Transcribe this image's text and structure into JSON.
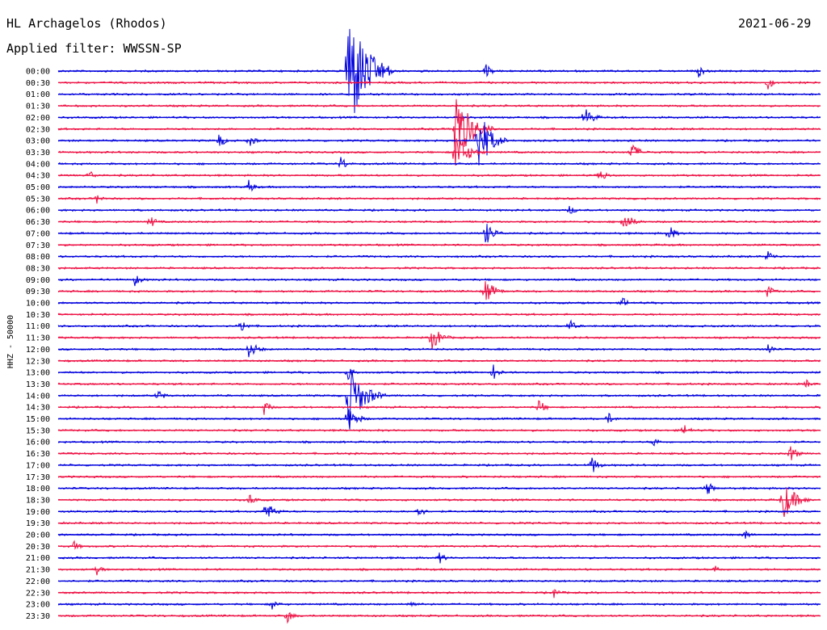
{
  "header": {
    "station": "HL Archagelos (Rhodos)",
    "date": "2021-06-29",
    "filter": "Applied filter: WWSSN-SP"
  },
  "chart_data": {
    "type": "line",
    "kind": "helicorder",
    "ylabel": "HHZ - 50000",
    "row_labels": [
      "00:00",
      "00:30",
      "01:00",
      "01:30",
      "02:00",
      "02:30",
      "03:00",
      "03:30",
      "04:00",
      "04:30",
      "05:00",
      "05:30",
      "06:00",
      "06:30",
      "07:00",
      "07:30",
      "08:00",
      "08:30",
      "09:00",
      "09:30",
      "10:00",
      "10:30",
      "11:00",
      "11:30",
      "12:00",
      "12:30",
      "13:00",
      "13:30",
      "14:00",
      "14:30",
      "15:00",
      "15:30",
      "16:00",
      "16:30",
      "17:00",
      "17:30",
      "18:00",
      "18:30",
      "19:00",
      "19:30",
      "20:00",
      "20:30",
      "21:00",
      "21:30",
      "22:00",
      "22:30",
      "23:00",
      "23:30"
    ],
    "colors": [
      "#0000dd",
      "#ee1144"
    ],
    "events": [
      {
        "row": 0,
        "pos": 0.38,
        "amp": 90,
        "dur": 0.06
      },
      {
        "row": 0,
        "pos": 0.56,
        "amp": 12,
        "dur": 0.02
      },
      {
        "row": 0,
        "pos": 0.84,
        "amp": 8,
        "dur": 0.02
      },
      {
        "row": 1,
        "pos": 0.93,
        "amp": 10,
        "dur": 0.02
      },
      {
        "row": 4,
        "pos": 0.69,
        "amp": 14,
        "dur": 0.03
      },
      {
        "row": 5,
        "pos": 0.52,
        "amp": 55,
        "dur": 0.05
      },
      {
        "row": 6,
        "pos": 0.55,
        "amp": 45,
        "dur": 0.04
      },
      {
        "row": 6,
        "pos": 0.21,
        "amp": 12,
        "dur": 0.02
      },
      {
        "row": 6,
        "pos": 0.25,
        "amp": 10,
        "dur": 0.02
      },
      {
        "row": 7,
        "pos": 0.52,
        "amp": 30,
        "dur": 0.04
      },
      {
        "row": 7,
        "pos": 0.75,
        "amp": 14,
        "dur": 0.03
      },
      {
        "row": 8,
        "pos": 0.37,
        "amp": 12,
        "dur": 0.02
      },
      {
        "row": 9,
        "pos": 0.04,
        "amp": 8,
        "dur": 0.02
      },
      {
        "row": 9,
        "pos": 0.71,
        "amp": 12,
        "dur": 0.02
      },
      {
        "row": 10,
        "pos": 0.25,
        "amp": 10,
        "dur": 0.02
      },
      {
        "row": 11,
        "pos": 0.05,
        "amp": 8,
        "dur": 0.02
      },
      {
        "row": 12,
        "pos": 0.67,
        "amp": 8,
        "dur": 0.02
      },
      {
        "row": 13,
        "pos": 0.12,
        "amp": 10,
        "dur": 0.02
      },
      {
        "row": 13,
        "pos": 0.74,
        "amp": 16,
        "dur": 0.03
      },
      {
        "row": 14,
        "pos": 0.56,
        "amp": 16,
        "dur": 0.03
      },
      {
        "row": 14,
        "pos": 0.8,
        "amp": 14,
        "dur": 0.02
      },
      {
        "row": 16,
        "pos": 0.93,
        "amp": 10,
        "dur": 0.02
      },
      {
        "row": 18,
        "pos": 0.1,
        "amp": 10,
        "dur": 0.02
      },
      {
        "row": 19,
        "pos": 0.56,
        "amp": 18,
        "dur": 0.03
      },
      {
        "row": 19,
        "pos": 0.93,
        "amp": 10,
        "dur": 0.02
      },
      {
        "row": 20,
        "pos": 0.74,
        "amp": 8,
        "dur": 0.02
      },
      {
        "row": 22,
        "pos": 0.24,
        "amp": 10,
        "dur": 0.02
      },
      {
        "row": 22,
        "pos": 0.67,
        "amp": 10,
        "dur": 0.02
      },
      {
        "row": 23,
        "pos": 0.49,
        "amp": 18,
        "dur": 0.03
      },
      {
        "row": 24,
        "pos": 0.25,
        "amp": 12,
        "dur": 0.03
      },
      {
        "row": 24,
        "pos": 0.93,
        "amp": 10,
        "dur": 0.02
      },
      {
        "row": 26,
        "pos": 0.38,
        "amp": 10,
        "dur": 0.02
      },
      {
        "row": 26,
        "pos": 0.57,
        "amp": 12,
        "dur": 0.02
      },
      {
        "row": 27,
        "pos": 0.98,
        "amp": 8,
        "dur": 0.02
      },
      {
        "row": 28,
        "pos": 0.38,
        "amp": 45,
        "dur": 0.05
      },
      {
        "row": 28,
        "pos": 0.13,
        "amp": 10,
        "dur": 0.02
      },
      {
        "row": 29,
        "pos": 0.27,
        "amp": 10,
        "dur": 0.02
      },
      {
        "row": 29,
        "pos": 0.63,
        "amp": 12,
        "dur": 0.02
      },
      {
        "row": 30,
        "pos": 0.38,
        "amp": 18,
        "dur": 0.03
      },
      {
        "row": 30,
        "pos": 0.72,
        "amp": 10,
        "dur": 0.02
      },
      {
        "row": 31,
        "pos": 0.82,
        "amp": 10,
        "dur": 0.02
      },
      {
        "row": 32,
        "pos": 0.78,
        "amp": 8,
        "dur": 0.02
      },
      {
        "row": 33,
        "pos": 0.96,
        "amp": 14,
        "dur": 0.02
      },
      {
        "row": 34,
        "pos": 0.7,
        "amp": 14,
        "dur": 0.02
      },
      {
        "row": 36,
        "pos": 0.85,
        "amp": 12,
        "dur": 0.02
      },
      {
        "row": 37,
        "pos": 0.95,
        "amp": 28,
        "dur": 0.04
      },
      {
        "row": 37,
        "pos": 0.25,
        "amp": 10,
        "dur": 0.02
      },
      {
        "row": 38,
        "pos": 0.27,
        "amp": 16,
        "dur": 0.03
      },
      {
        "row": 38,
        "pos": 0.47,
        "amp": 12,
        "dur": 0.02
      },
      {
        "row": 40,
        "pos": 0.9,
        "amp": 8,
        "dur": 0.02
      },
      {
        "row": 41,
        "pos": 0.02,
        "amp": 8,
        "dur": 0.02
      },
      {
        "row": 42,
        "pos": 0.5,
        "amp": 8,
        "dur": 0.02
      },
      {
        "row": 43,
        "pos": 0.05,
        "amp": 8,
        "dur": 0.02
      },
      {
        "row": 43,
        "pos": 0.86,
        "amp": 8,
        "dur": 0.02
      },
      {
        "row": 45,
        "pos": 0.65,
        "amp": 8,
        "dur": 0.02
      },
      {
        "row": 46,
        "pos": 0.28,
        "amp": 8,
        "dur": 0.02
      },
      {
        "row": 46,
        "pos": 0.46,
        "amp": 8,
        "dur": 0.02
      },
      {
        "row": 47,
        "pos": 0.3,
        "amp": 10,
        "dur": 0.02
      }
    ]
  }
}
